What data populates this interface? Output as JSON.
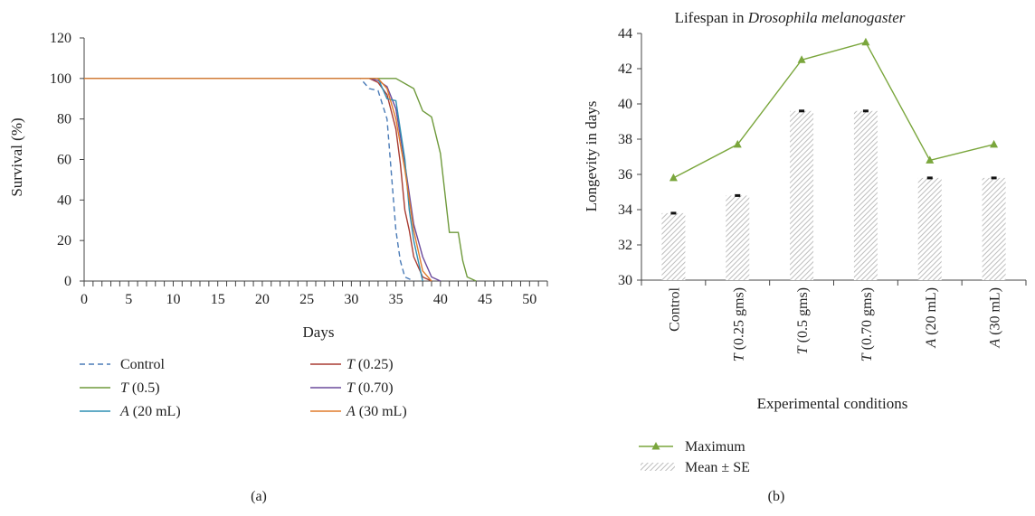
{
  "chart_data": [
    {
      "type": "line",
      "xlabel": "Days",
      "ylabel": "Survival (%)",
      "xlim": [
        0,
        52
      ],
      "ylim": [
        0,
        120
      ],
      "x_ticks": [
        "0",
        "5",
        "10",
        "15",
        "20",
        "25",
        "30",
        "35",
        "40",
        "45",
        "50"
      ],
      "y_ticks": [
        "0",
        "20",
        "40",
        "60",
        "80",
        "100",
        "120"
      ],
      "caption": "(a)",
      "legend_position": "bottom",
      "series": [
        {
          "name": "Control",
          "name_prefix": "",
          "name_suffix": "Control",
          "color": "#4a7bb7",
          "dash": true,
          "x": [
            0,
            31,
            32,
            33,
            34,
            35,
            35.5,
            36,
            37
          ],
          "y": [
            100,
            100,
            95,
            94,
            80,
            25,
            10,
            2,
            0
          ]
        },
        {
          "name": "T (0.25)",
          "name_prefix": "T",
          "name_suffix": " (0.25)",
          "color": "#a93c32",
          "dash": false,
          "x": [
            0,
            32,
            33,
            34,
            35,
            35.5,
            36,
            36.5,
            37,
            38,
            39
          ],
          "y": [
            100,
            100,
            98,
            92,
            75,
            58,
            35,
            25,
            12,
            2,
            0
          ]
        },
        {
          "name": "T (0.5)",
          "name_prefix": "T",
          "name_suffix": " (0.5)",
          "color": "#6f9a3c",
          "dash": false,
          "x": [
            0,
            35,
            37,
            38,
            39,
            40,
            41,
            42,
            42.5,
            43,
            44
          ],
          "y": [
            100,
            100,
            95,
            84,
            81,
            63,
            24,
            24,
            10,
            2,
            0
          ]
        },
        {
          "name": "T (0.70)",
          "name_prefix": "T",
          "name_suffix": " (0.70)",
          "color": "#6a4a9c",
          "dash": false,
          "x": [
            0,
            32,
            33,
            34,
            35,
            36,
            37,
            38,
            39,
            40
          ],
          "y": [
            100,
            100,
            99,
            96,
            85,
            58,
            28,
            12,
            2,
            0
          ]
        },
        {
          "name": "A (20 mL)",
          "name_prefix": "A",
          "name_suffix": " (20 mL)",
          "color": "#2f8fb3",
          "dash": false,
          "x": [
            0,
            33,
            34,
            35,
            36,
            36.5,
            37,
            38
          ],
          "y": [
            100,
            100,
            90,
            89,
            60,
            35,
            20,
            0
          ]
        },
        {
          "name": "A (30 mL)",
          "name_prefix": "A",
          "name_suffix": " (30 mL)",
          "color": "#e07c2c",
          "dash": false,
          "x": [
            0,
            33,
            34,
            35,
            36,
            37,
            38,
            39
          ],
          "y": [
            100,
            100,
            95,
            80,
            55,
            25,
            5,
            0
          ]
        }
      ]
    },
    {
      "type": "bar",
      "title_prefix": "Lifespan in ",
      "title_italic": "Drosophila melanogaster",
      "xlabel": "Experimental conditions",
      "ylabel": "Longevity in days",
      "ylim": [
        30,
        44
      ],
      "y_ticks": [
        "30",
        "32",
        "34",
        "36",
        "38",
        "40",
        "42",
        "44"
      ],
      "caption": "(b)",
      "legend_position": "bottom-left",
      "categories": [
        {
          "prefix": "",
          "suffix": "Control"
        },
        {
          "prefix": "T",
          "suffix": " (0.25 gms)"
        },
        {
          "prefix": "T",
          "suffix": " (0.5 gms)"
        },
        {
          "prefix": "T",
          "suffix": " (0.70 gms)"
        },
        {
          "prefix": "A",
          "suffix": " (20 mL)"
        },
        {
          "prefix": "A",
          "suffix": " (30 mL)"
        }
      ],
      "series": [
        {
          "name": "Mean ± SE",
          "kind": "bar",
          "values": [
            33.8,
            34.8,
            39.6,
            39.6,
            35.8,
            35.8
          ],
          "color": "#c9c9c9"
        },
        {
          "name": "Maximum",
          "kind": "line",
          "marker": "triangle",
          "values": [
            35.8,
            37.7,
            42.5,
            43.5,
            36.8,
            37.7
          ],
          "color": "#7aa63c"
        }
      ]
    }
  ]
}
